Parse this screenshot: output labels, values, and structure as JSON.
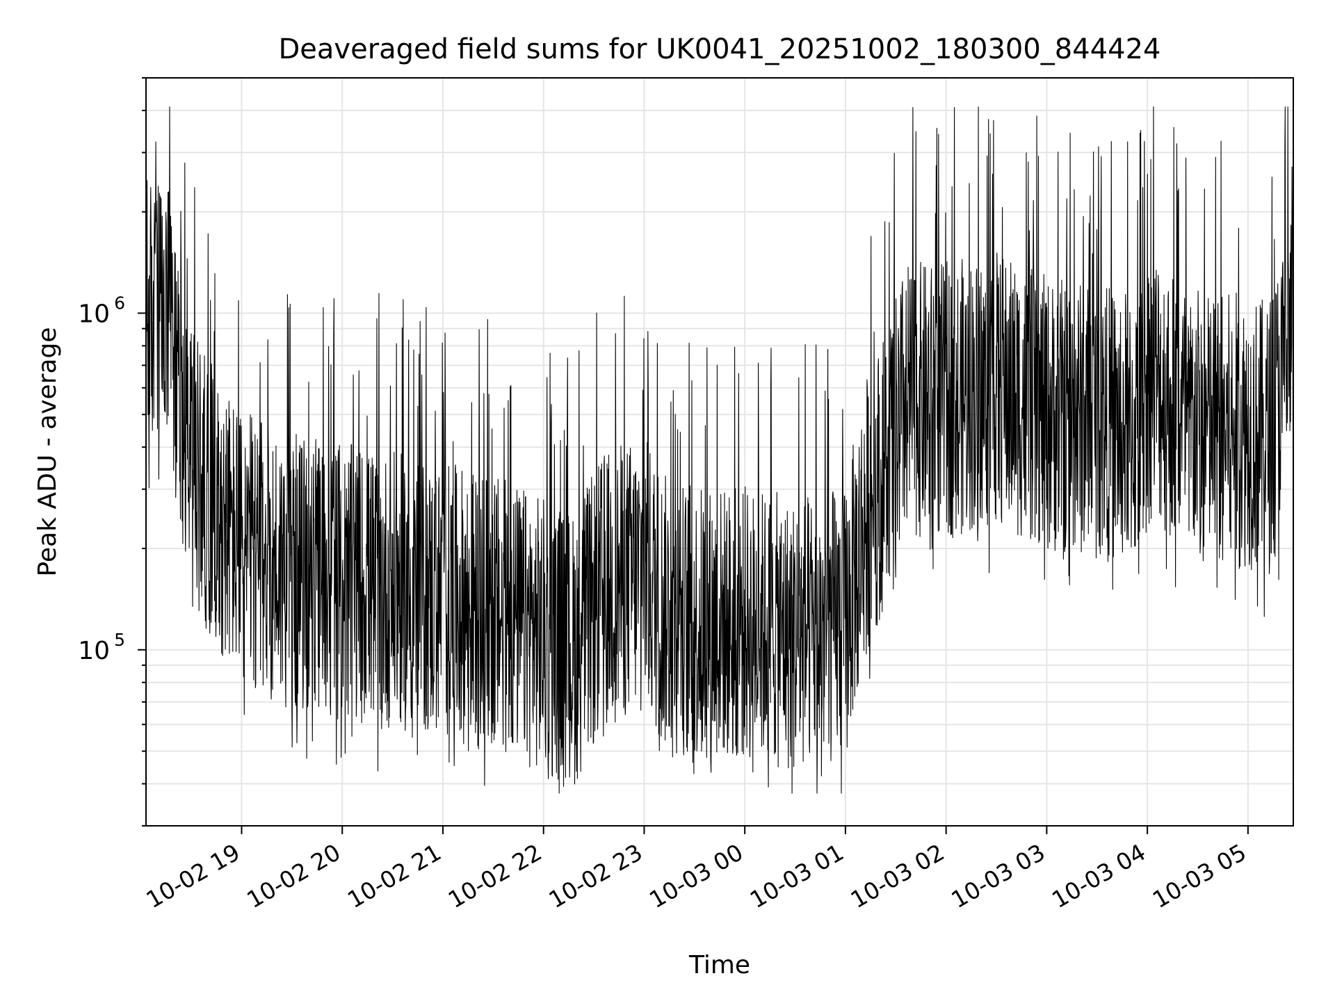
{
  "chart_data": {
    "type": "line",
    "title": "Deaveraged field sums for UK0041_20251002_180300_844424",
    "xlabel": "Time",
    "ylabel": "Peak ADU - average",
    "yscale": "log",
    "ylim": [
      30000,
      5000000
    ],
    "xlim_hours": [
      18.05,
      29.45
    ],
    "grid": true,
    "line_color": "#000000",
    "grid_color": "#e5e5e5",
    "x_ticks": [
      {
        "hour": 19,
        "label": "10-02 19"
      },
      {
        "hour": 20,
        "label": "10-02 20"
      },
      {
        "hour": 21,
        "label": "10-02 21"
      },
      {
        "hour": 22,
        "label": "10-02 22"
      },
      {
        "hour": 23,
        "label": "10-02 23"
      },
      {
        "hour": 24,
        "label": "10-03 00"
      },
      {
        "hour": 25,
        "label": "10-03 01"
      },
      {
        "hour": 26,
        "label": "10-03 02"
      },
      {
        "hour": 27,
        "label": "10-03 03"
      },
      {
        "hour": 28,
        "label": "10-03 04"
      },
      {
        "hour": 29,
        "label": "10-03 05"
      }
    ],
    "y_major_ticks": [
      {
        "value": 100000,
        "base": "10",
        "exp": "5"
      },
      {
        "value": 1000000,
        "base": "10",
        "exp": "6"
      }
    ],
    "series": [
      {
        "name": "Deaveraged field sums",
        "envelope_hours": [
          18.05,
          18.3,
          18.5,
          19.0,
          19.5,
          20.0,
          20.5,
          21.0,
          21.5,
          22.0,
          22.3,
          22.6,
          22.8,
          23.0,
          23.2,
          23.5,
          24.0,
          24.5,
          25.0,
          25.2,
          25.4,
          25.6,
          26.0,
          26.5,
          27.0,
          27.5,
          27.9,
          28.05,
          28.3,
          28.6,
          29.0,
          29.2,
          29.45
        ],
        "envelope_values": [
          1000000,
          900000,
          350000,
          200000,
          170000,
          160000,
          150000,
          140000,
          130000,
          110000,
          100000,
          150000,
          160000,
          170000,
          130000,
          120000,
          120000,
          110000,
          120000,
          250000,
          350000,
          550000,
          550000,
          600000,
          500000,
          480000,
          450000,
          650000,
          500000,
          450000,
          450000,
          420000,
          850000
        ]
      }
    ]
  }
}
